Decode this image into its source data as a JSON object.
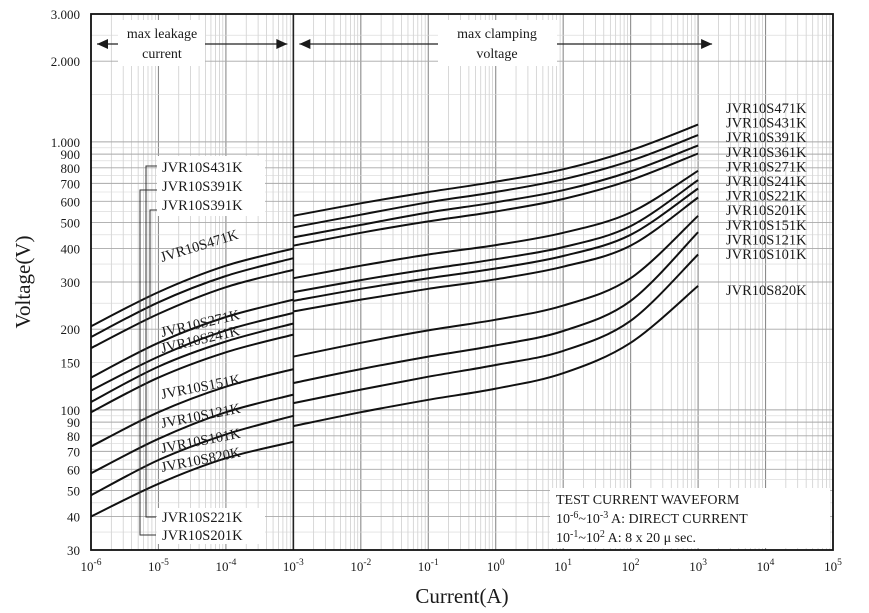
{
  "chart_data": {
    "type": "line",
    "xlabel": "Current(A)",
    "ylabel": "Voltage(V)",
    "x_scale": "log",
    "y_scale": "log",
    "xlim": [
      1e-06,
      100000
    ],
    "ylim": [
      30,
      3000
    ],
    "grid": true,
    "x_ticks": [
      {
        "base": "10",
        "exp": "-6"
      },
      {
        "base": "10",
        "exp": "-5"
      },
      {
        "base": "10",
        "exp": "-4"
      },
      {
        "base": "10",
        "exp": "-3"
      },
      {
        "base": "10",
        "exp": "-2"
      },
      {
        "base": "10",
        "exp": "-1"
      },
      {
        "base": "10",
        "exp": "0"
      },
      {
        "base": "10",
        "exp": "1"
      },
      {
        "base": "10",
        "exp": "2"
      },
      {
        "base": "10",
        "exp": "3"
      },
      {
        "base": "10",
        "exp": "4"
      },
      {
        "base": "10",
        "exp": "5"
      }
    ],
    "y_ticks": [
      {
        "value": 30,
        "label": "30"
      },
      {
        "value": 40,
        "label": "40"
      },
      {
        "value": 50,
        "label": "50"
      },
      {
        "value": 60,
        "label": "60"
      },
      {
        "value": 70,
        "label": "70"
      },
      {
        "value": 80,
        "label": "80"
      },
      {
        "value": 90,
        "label": "90"
      },
      {
        "value": 100,
        "label": "100"
      },
      {
        "value": 150,
        "label": "150"
      },
      {
        "value": 200,
        "label": "200"
      },
      {
        "value": 300,
        "label": "300"
      },
      {
        "value": 400,
        "label": "400"
      },
      {
        "value": 500,
        "label": "500"
      },
      {
        "value": 600,
        "label": "600"
      },
      {
        "value": 700,
        "label": "700"
      },
      {
        "value": 800,
        "label": "800"
      },
      {
        "value": 900,
        "label": "900"
      },
      {
        "value": 1000,
        "label": "1.000"
      },
      {
        "value": 2000,
        "label": "2.000"
      },
      {
        "value": 3000,
        "label": "3.000"
      }
    ],
    "regions": [
      {
        "label": [
          "max leakage",
          "current"
        ],
        "x_from": 1e-06,
        "x_to": 0.001
      },
      {
        "label": [
          "max clamping",
          "voltage"
        ],
        "x_from": 0.001,
        "x_to": 1000
      }
    ],
    "series": [
      {
        "name": "JVR10S471K",
        "leakage": [
          [
            1e-06,
            205
          ],
          [
            1e-05,
            275
          ],
          [
            0.0001,
            345
          ],
          [
            0.001,
            400
          ]
        ],
        "clamping": [
          [
            0.001,
            530
          ],
          [
            0.01,
            590
          ],
          [
            0.1,
            650
          ],
          [
            1,
            710
          ],
          [
            10,
            790
          ],
          [
            100,
            930
          ],
          [
            1000,
            1160
          ]
        ]
      },
      {
        "name": "JVR10S431K",
        "leakage": [
          [
            1e-06,
            187
          ],
          [
            1e-05,
            252
          ],
          [
            0.0001,
            316
          ],
          [
            0.001,
            368
          ]
        ],
        "clamping": [
          [
            0.001,
            480
          ],
          [
            0.01,
            535
          ],
          [
            0.1,
            595
          ],
          [
            1,
            650
          ],
          [
            10,
            725
          ],
          [
            100,
            850
          ],
          [
            1000,
            1060
          ]
        ]
      },
      {
        "name": "JVR10S391K",
        "leakage": [
          [
            1e-06,
            170
          ],
          [
            1e-05,
            228
          ],
          [
            0.0001,
            287
          ],
          [
            0.001,
            333
          ]
        ],
        "clamping": [
          [
            0.001,
            440
          ],
          [
            0.01,
            490
          ],
          [
            0.1,
            545
          ],
          [
            1,
            595
          ],
          [
            10,
            660
          ],
          [
            100,
            775
          ],
          [
            1000,
            970
          ]
        ]
      },
      {
        "name": "JVR10S361K",
        "leakage": [],
        "clamping": [
          [
            0.001,
            410
          ],
          [
            0.01,
            458
          ],
          [
            0.1,
            505
          ],
          [
            1,
            550
          ],
          [
            10,
            612
          ],
          [
            100,
            720
          ],
          [
            1000,
            905
          ]
        ]
      },
      {
        "name": "JVR10S271K",
        "leakage": [
          [
            1e-06,
            132
          ],
          [
            1e-05,
            178
          ],
          [
            0.0001,
            222
          ],
          [
            0.001,
            258
          ]
        ],
        "clamping": [
          [
            0.001,
            310
          ],
          [
            0.01,
            345
          ],
          [
            0.1,
            380
          ],
          [
            1,
            412
          ],
          [
            10,
            458
          ],
          [
            100,
            545
          ],
          [
            1000,
            780
          ]
        ]
      },
      {
        "name": "JVR10S241K",
        "leakage": [
          [
            1e-06,
            118
          ],
          [
            1e-05,
            158
          ],
          [
            0.0001,
            198
          ],
          [
            0.001,
            230
          ]
        ],
        "clamping": [
          [
            0.001,
            275
          ],
          [
            0.01,
            305
          ],
          [
            0.1,
            335
          ],
          [
            1,
            365
          ],
          [
            10,
            405
          ],
          [
            100,
            485
          ],
          [
            1000,
            720
          ]
        ]
      },
      {
        "name": "JVR10S221K",
        "leakage": [
          [
            1e-06,
            107
          ],
          [
            1e-05,
            145
          ],
          [
            0.0001,
            180
          ],
          [
            0.001,
            210
          ]
        ],
        "clamping": [
          [
            0.001,
            255
          ],
          [
            0.01,
            283
          ],
          [
            0.1,
            310
          ],
          [
            1,
            337
          ],
          [
            10,
            375
          ],
          [
            100,
            450
          ],
          [
            1000,
            670
          ]
        ]
      },
      {
        "name": "JVR10S201K",
        "leakage": [
          [
            1e-06,
            98
          ],
          [
            1e-05,
            132
          ],
          [
            0.0001,
            164
          ],
          [
            0.001,
            191
          ]
        ],
        "clamping": [
          [
            0.001,
            233
          ],
          [
            0.01,
            258
          ],
          [
            0.1,
            283
          ],
          [
            1,
            307
          ],
          [
            10,
            342
          ],
          [
            100,
            410
          ],
          [
            1000,
            620
          ]
        ]
      },
      {
        "name": "JVR10S151K",
        "leakage": [
          [
            1e-06,
            73
          ],
          [
            1e-05,
            98
          ],
          [
            0.0001,
            122
          ],
          [
            0.001,
            142
          ]
        ],
        "clamping": [
          [
            0.001,
            158
          ],
          [
            0.01,
            178
          ],
          [
            0.1,
            198
          ],
          [
            1,
            217
          ],
          [
            10,
            245
          ],
          [
            100,
            310
          ],
          [
            1000,
            530
          ]
        ]
      },
      {
        "name": "JVR10S121K",
        "leakage": [
          [
            1e-06,
            58
          ],
          [
            1e-05,
            78
          ],
          [
            0.0001,
            98
          ],
          [
            0.001,
            114
          ]
        ],
        "clamping": [
          [
            0.001,
            126
          ],
          [
            0.01,
            142
          ],
          [
            0.1,
            158
          ],
          [
            1,
            174
          ],
          [
            10,
            197
          ],
          [
            100,
            255
          ],
          [
            1000,
            460
          ]
        ]
      },
      {
        "name": "JVR10S101K",
        "leakage": [
          [
            1e-06,
            48
          ],
          [
            1e-05,
            65
          ],
          [
            0.0001,
            81
          ],
          [
            0.001,
            95
          ]
        ],
        "clamping": [
          [
            0.001,
            106
          ],
          [
            0.01,
            119
          ],
          [
            0.1,
            133
          ],
          [
            1,
            147
          ],
          [
            10,
            166
          ],
          [
            100,
            215
          ],
          [
            1000,
            380
          ]
        ]
      },
      {
        "name": "JVR10S820K",
        "leakage": [
          [
            1e-06,
            40
          ],
          [
            1e-05,
            53
          ],
          [
            0.0001,
            66
          ],
          [
            0.001,
            76
          ]
        ],
        "clamping": [
          [
            0.001,
            87
          ],
          [
            0.01,
            98
          ],
          [
            0.1,
            109
          ],
          [
            1,
            120
          ],
          [
            10,
            137
          ],
          [
            100,
            178
          ],
          [
            1000,
            290
          ]
        ]
      }
    ],
    "right_labels": [
      "JVR10S471K",
      "JVR10S431K",
      "JVR10S391K",
      "JVR10S361K",
      "JVR10S271K",
      "JVR10S241K",
      "JVR10S221K",
      "JVR10S201K",
      "JVR10S151K",
      "JVR10S121K",
      "JVR10S101K"
    ],
    "right_label_last": "JVR10S820K",
    "left_callouts_top": [
      "JVR10S431K",
      "JVR10S391K",
      "JVR10S391K"
    ],
    "left_callouts_bottom": [
      "JVR10S221K",
      "JVR10S201K"
    ],
    "inline_labels": [
      "JVR10S471K",
      "JVR10S271K",
      "JVR10S241K",
      "JVR10S151K",
      "JVR10S121K",
      "JVR10S101K",
      "JVR10S820K"
    ],
    "test_note": {
      "title": "TEST CURRENT WAVEFORM",
      "line1": {
        "from_base": "10",
        "from_exp": "-6",
        "sep": "~",
        "to_base": "10",
        "to_exp": "-3",
        "text": "  A: DIRECT CURRENT"
      },
      "line2": {
        "from_base": "10",
        "from_exp": "-1",
        "sep": "~",
        "to_base": "10",
        "to_exp": "2",
        "text": "  A: 8 x 20  μ  sec."
      }
    }
  }
}
